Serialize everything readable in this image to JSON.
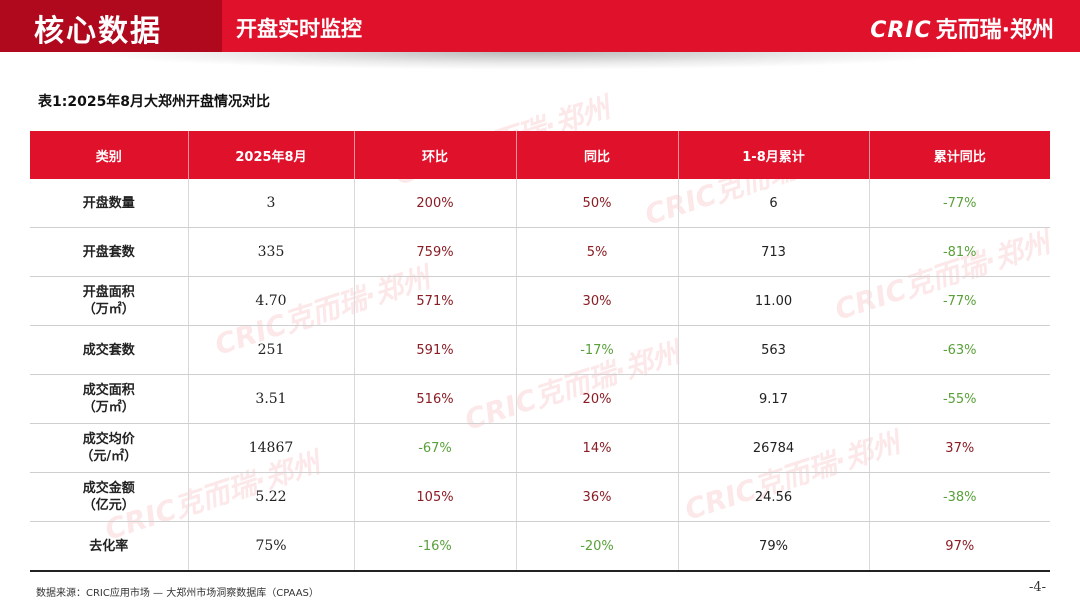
{
  "header": {
    "title": "核心数据",
    "subtitle": "开盘实时监控",
    "logo_mark": "CRIC",
    "logo_name": "克而瑞·郑州"
  },
  "caption": "表1:2025年8月大郑州开盘情况对比",
  "watermark": "CRIC克而瑞·郑州",
  "table": {
    "headers": [
      "类别",
      "2025年8月",
      "环比",
      "同比",
      "1-8月累计",
      "累计同比"
    ],
    "rows": [
      {
        "cat1": "开盘数量",
        "cat2": "",
        "month": "3",
        "mom": "200%",
        "yoy": "50%",
        "cum": "6",
        "cumyoy": "-77%"
      },
      {
        "cat1": "开盘套数",
        "cat2": "",
        "month": "335",
        "mom": "759%",
        "yoy": "5%",
        "cum": "713",
        "cumyoy": "-81%"
      },
      {
        "cat1": "开盘面积",
        "cat2": "（万㎡）",
        "month": "4.70",
        "mom": "571%",
        "yoy": "30%",
        "cum": "11.00",
        "cumyoy": "-77%"
      },
      {
        "cat1": "成交套数",
        "cat2": "",
        "month": "251",
        "mom": "591%",
        "yoy": "-17%",
        "cum": "563",
        "cumyoy": "-63%"
      },
      {
        "cat1": "成交面积",
        "cat2": "（万㎡）",
        "month": "3.51",
        "mom": "516%",
        "yoy": "20%",
        "cum": "9.17",
        "cumyoy": "-55%"
      },
      {
        "cat1": "成交均价",
        "cat2": "（元/㎡）",
        "month": "14867",
        "mom": "-67%",
        "yoy": "14%",
        "cum": "26784",
        "cumyoy": "37%"
      },
      {
        "cat1": "成交金额",
        "cat2": "（亿元）",
        "month": "5.22",
        "mom": "105%",
        "yoy": "36%",
        "cum": "24.56",
        "cumyoy": "-38%"
      },
      {
        "cat1": "去化率",
        "cat2": "",
        "month": "75%",
        "mom": "-16%",
        "yoy": "-20%",
        "cum": "79%",
        "cumyoy": "97%"
      }
    ]
  },
  "footer": {
    "source": "数据来源：CRIC应用市场 — 大郑州市场洞察数据库（CPAAS）",
    "page": "-4-"
  }
}
